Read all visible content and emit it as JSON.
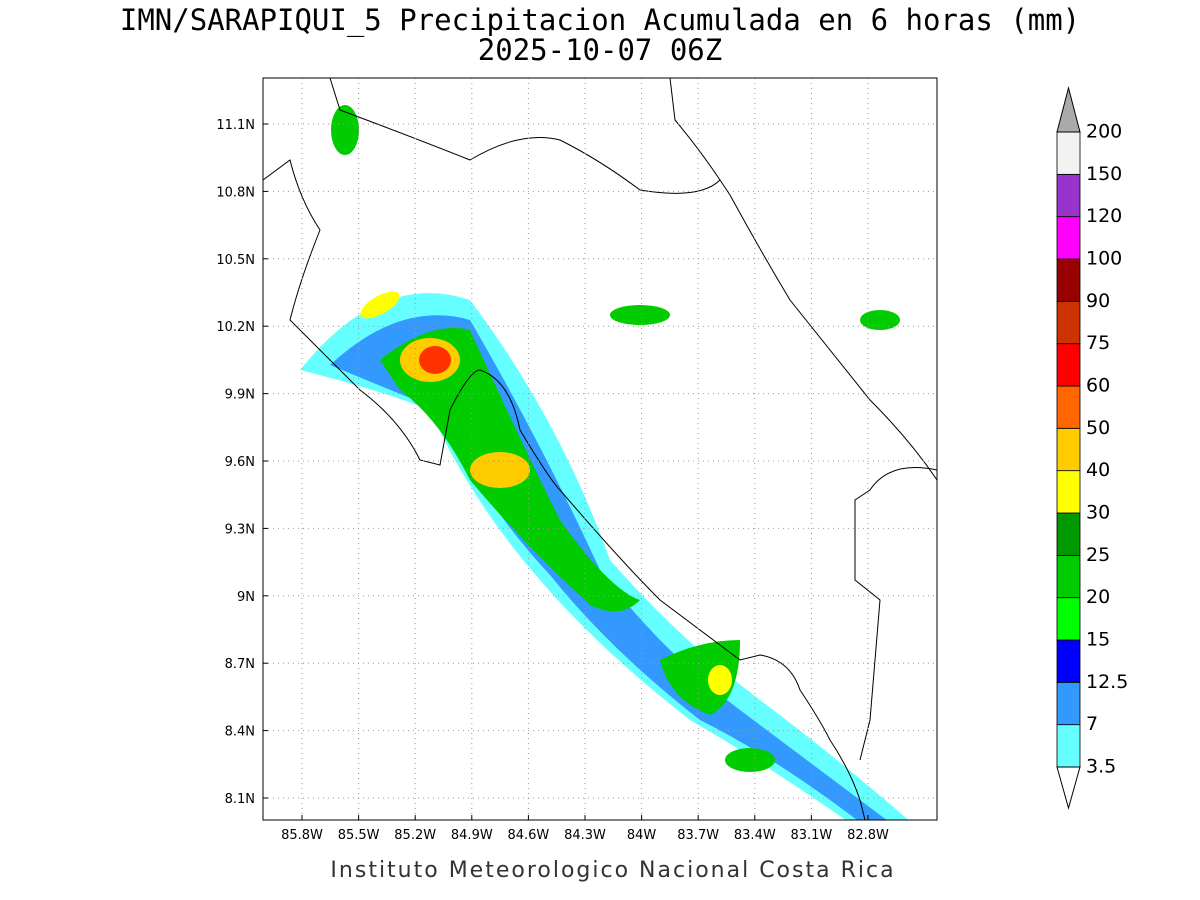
{
  "header": {
    "title": "IMN/SARAPIQUI_5 Precipitacion Acumulada en 6 horas (mm)",
    "subtitle": "2025-10-07 06Z"
  },
  "map": {
    "lat_labels": [
      "11.1N",
      "10.8N",
      "10.5N",
      "10.2N",
      "9.9N",
      "9.6N",
      "9.3N",
      "9N",
      "8.7N",
      "8.4N",
      "8.1N"
    ],
    "lon_labels": [
      "85.8W",
      "85.5W",
      "85.2W",
      "84.9W",
      "84.6W",
      "84.3W",
      "84W",
      "83.7W",
      "83.4W",
      "83.1W",
      "82.8W"
    ]
  },
  "colorbar": {
    "levels": [
      3.5,
      7,
      12.5,
      15,
      20,
      25,
      30,
      40,
      50,
      60,
      75,
      90,
      100,
      120,
      150,
      200
    ],
    "colors": [
      "#66ffff",
      "#3399ff",
      "#0000ff",
      "#00ff00",
      "#00cc00",
      "#009900",
      "#ffff00",
      "#ffcc00",
      "#ff6600",
      "#ff0000",
      "#cc3300",
      "#990000",
      "#ff00ff",
      "#9933cc",
      "#f2f2f2"
    ],
    "over_color": "#aaaaaa",
    "under_color": "#ffffff"
  },
  "footer": "Instituto Meteorologico Nacional Costa Rica"
}
